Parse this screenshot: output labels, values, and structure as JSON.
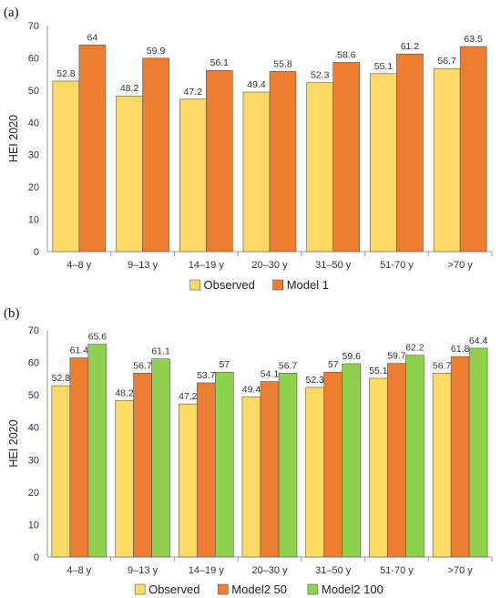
{
  "chart_data": [
    {
      "type": "bar",
      "panel_label": "(a)",
      "ylabel": "HEI 2020",
      "ylim": [
        0,
        70
      ],
      "yticks": [
        0,
        10,
        20,
        30,
        40,
        50,
        60,
        70
      ],
      "categories": [
        "4–8 y",
        "9–13 y",
        "14–19 y",
        "20–30 y",
        "31–50 y",
        "51-70 y",
        ">70 y"
      ],
      "series": [
        {
          "name": "Observed",
          "color": "#FFD966",
          "values": [
            52.8,
            48.2,
            47.2,
            49.4,
            52.3,
            55.1,
            56.7
          ],
          "labels": [
            "52.8",
            "48.2",
            "47.2",
            "49.4",
            "52.3",
            "55.1",
            "56.7"
          ]
        },
        {
          "name": "Model 1",
          "color": "#ED7D31",
          "values": [
            64,
            59.9,
            56.1,
            55.8,
            58.6,
            61.2,
            63.5
          ],
          "labels": [
            "64",
            "59.9",
            "56.1",
            "55.8",
            "58.6",
            "61.2",
            "63.5"
          ]
        }
      ],
      "grid": false,
      "legend_position": "bottom"
    },
    {
      "type": "bar",
      "panel_label": "(b)",
      "ylabel": "HEI 2020",
      "ylim": [
        0,
        70
      ],
      "yticks": [
        0,
        10,
        20,
        30,
        40,
        50,
        60,
        70
      ],
      "categories": [
        "4–8 y",
        "9–13 y",
        "14–19 y",
        "20–30 y",
        "31–50 y",
        "51-70 y",
        ">70 y"
      ],
      "series": [
        {
          "name": "Observed",
          "color": "#FFD966",
          "values": [
            52.8,
            48.2,
            47.2,
            49.4,
            52.3,
            55.1,
            56.7
          ],
          "labels": [
            "52.8",
            "48.2",
            "47.2",
            "49.4",
            "52.3",
            "55.1",
            "56.7"
          ]
        },
        {
          "name": "Model2 50",
          "color": "#ED7D31",
          "values": [
            61.4,
            56.7,
            53.7,
            54.1,
            57,
            59.7,
            61.8
          ],
          "labels": [
            "61.4",
            "56.7",
            "53.7",
            "54.1",
            "57",
            "59.7",
            "61.8"
          ]
        },
        {
          "name": "Model2 100",
          "color": "#8FD14F",
          "values": [
            65.6,
            61.1,
            57,
            56.7,
            59.6,
            62.2,
            64.4
          ],
          "labels": [
            "65.6",
            "61.1",
            "57",
            "56.7",
            "59.6",
            "62.2",
            "64.4"
          ]
        }
      ],
      "grid": false,
      "legend_position": "bottom"
    }
  ]
}
